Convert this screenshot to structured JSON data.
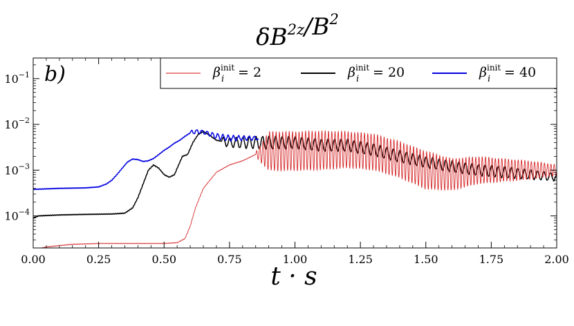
{
  "chart_data": {
    "type": "line",
    "title": "δB_z²/B²",
    "title_parts": {
      "base": "δB",
      "sub": "z",
      "sup1": "2",
      "denom": "/B",
      "sup2": "2"
    },
    "panel_label": "b)",
    "xlabel": "t · s",
    "ylabel": "",
    "xlim": [
      0.0,
      2.0
    ],
    "ylim_log10": [
      -4.7,
      -0.55
    ],
    "yscale": "log",
    "x_ticks": [
      "0.00",
      "0.25",
      "0.50",
      "0.75",
      "1.00",
      "1.25",
      "1.50",
      "1.75",
      "2.00"
    ],
    "y_ticks": [
      {
        "base": "10",
        "exp": "−1",
        "value": 0.1
      },
      {
        "base": "10",
        "exp": "−2",
        "value": 0.01
      },
      {
        "base": "10",
        "exp": "−3",
        "value": 0.001
      },
      {
        "base": "10",
        "exp": "−4",
        "value": 0.0001
      }
    ],
    "legend_location": "top-right",
    "series": [
      {
        "name": "β_i^init = 2",
        "label_base": "β",
        "label_sub": "i",
        "label_sup": "init",
        "label_value": "= 2",
        "color": "#d62728",
        "legend_color": "#e8888a",
        "oscillation": {
          "start": 0.85,
          "period": 0.0125,
          "fade_end": 2.0
        },
        "x": [
          0.0,
          0.05,
          0.15,
          0.25,
          0.35,
          0.45,
          0.5,
          0.55,
          0.58,
          0.6,
          0.62,
          0.65,
          0.7,
          0.75,
          0.8,
          0.85,
          0.9,
          1.0,
          1.1,
          1.2,
          1.3,
          1.4,
          1.5,
          1.6,
          1.7,
          1.8,
          1.9,
          2.0
        ],
        "y": [
          1.8e-05,
          2.1e-05,
          2.4e-05,
          2.5e-05,
          2.5e-05,
          2.5e-05,
          2.5e-05,
          2.6e-05,
          3.2e-05,
          6e-05,
          0.00015,
          0.0004,
          0.0009,
          0.0013,
          0.0016,
          0.0022,
          0.0026,
          0.0026,
          0.0027,
          0.0028,
          0.0025,
          0.0017,
          0.001,
          0.0008,
          0.001,
          0.001,
          0.001,
          0.001
        ],
        "amp_dex": [
          0,
          0,
          0,
          0,
          0,
          0,
          0,
          0,
          0,
          0,
          0,
          0,
          0,
          0,
          0,
          0.05,
          0.43,
          0.43,
          0.43,
          0.4,
          0.4,
          0.4,
          0.42,
          0.35,
          0.3,
          0.25,
          0.2,
          0.12
        ]
      },
      {
        "name": "β_i^init = 20",
        "label_base": "β",
        "label_sub": "i",
        "label_sup": "init",
        "label_value": "= 20",
        "color": "#000000",
        "legend_color": "#000000",
        "oscillation": {
          "start": 0.72,
          "period": 0.025,
          "fade_end": 2.0
        },
        "x": [
          0.0,
          0.02,
          0.05,
          0.1,
          0.2,
          0.3,
          0.35,
          0.38,
          0.4,
          0.42,
          0.44,
          0.46,
          0.48,
          0.5,
          0.52,
          0.54,
          0.55,
          0.57,
          0.59,
          0.61,
          0.63,
          0.65,
          0.67,
          0.7,
          0.75,
          0.8,
          0.85,
          0.9,
          1.0,
          1.1,
          1.2,
          1.3,
          1.4,
          1.5,
          1.6,
          1.7,
          1.8,
          1.9,
          2.0
        ],
        "y": [
          9e-05,
          0.0001,
          0.000102,
          0.000105,
          0.000108,
          0.00011,
          0.000115,
          0.00015,
          0.00025,
          0.0005,
          0.001,
          0.0013,
          0.0011,
          0.0008,
          0.0007,
          0.0008,
          0.0011,
          0.002,
          0.0022,
          0.004,
          0.006,
          0.007,
          0.006,
          0.0045,
          0.004,
          0.004,
          0.004,
          0.004,
          0.004,
          0.0035,
          0.0035,
          0.0028,
          0.002,
          0.0015,
          0.0012,
          0.001,
          0.0009,
          0.0008,
          0.0007
        ],
        "amp_dex": [
          0,
          0,
          0,
          0,
          0,
          0,
          0,
          0,
          0,
          0,
          0,
          0,
          0,
          0,
          0,
          0,
          0,
          0.05,
          0.1,
          0.1,
          0.05,
          0.03,
          0.05,
          0.08,
          0.1,
          0.12,
          0.13,
          0.14,
          0.13,
          0.13,
          0.13,
          0.13,
          0.13,
          0.12,
          0.12,
          0.12,
          0.12,
          0.1,
          0.08
        ]
      },
      {
        "name": "β_i^init = 40",
        "label_base": "β",
        "label_sub": "i",
        "label_sup": "init",
        "label_value": "= 40",
        "color": "#0000e0",
        "legend_color": "#0000e0",
        "oscillation": {
          "start": 0.6,
          "period": 0.02,
          "fade_end": 0.86
        },
        "x": [
          0.0,
          0.05,
          0.1,
          0.2,
          0.25,
          0.28,
          0.3,
          0.32,
          0.34,
          0.36,
          0.38,
          0.4,
          0.42,
          0.44,
          0.46,
          0.48,
          0.5,
          0.52,
          0.54,
          0.56,
          0.58,
          0.6,
          0.62,
          0.65,
          0.68,
          0.7,
          0.75,
          0.8,
          0.86
        ],
        "y": [
          0.00038,
          0.00039,
          0.0004,
          0.00041,
          0.00043,
          0.0005,
          0.0006,
          0.0008,
          0.0011,
          0.0015,
          0.00175,
          0.0017,
          0.00155,
          0.0016,
          0.0018,
          0.0022,
          0.0027,
          0.0032,
          0.0039,
          0.0045,
          0.0055,
          0.0065,
          0.007,
          0.0068,
          0.006,
          0.0055,
          0.005,
          0.005,
          0.005
        ],
        "amp_dex": [
          0,
          0,
          0,
          0,
          0,
          0,
          0,
          0,
          0,
          0,
          0,
          0,
          0,
          0,
          0,
          0,
          0,
          0.03,
          0.05,
          0.05,
          0.05,
          0.05,
          0.04,
          0.04,
          0.05,
          0.06,
          0.06,
          0.05,
          0.04
        ]
      }
    ]
  }
}
